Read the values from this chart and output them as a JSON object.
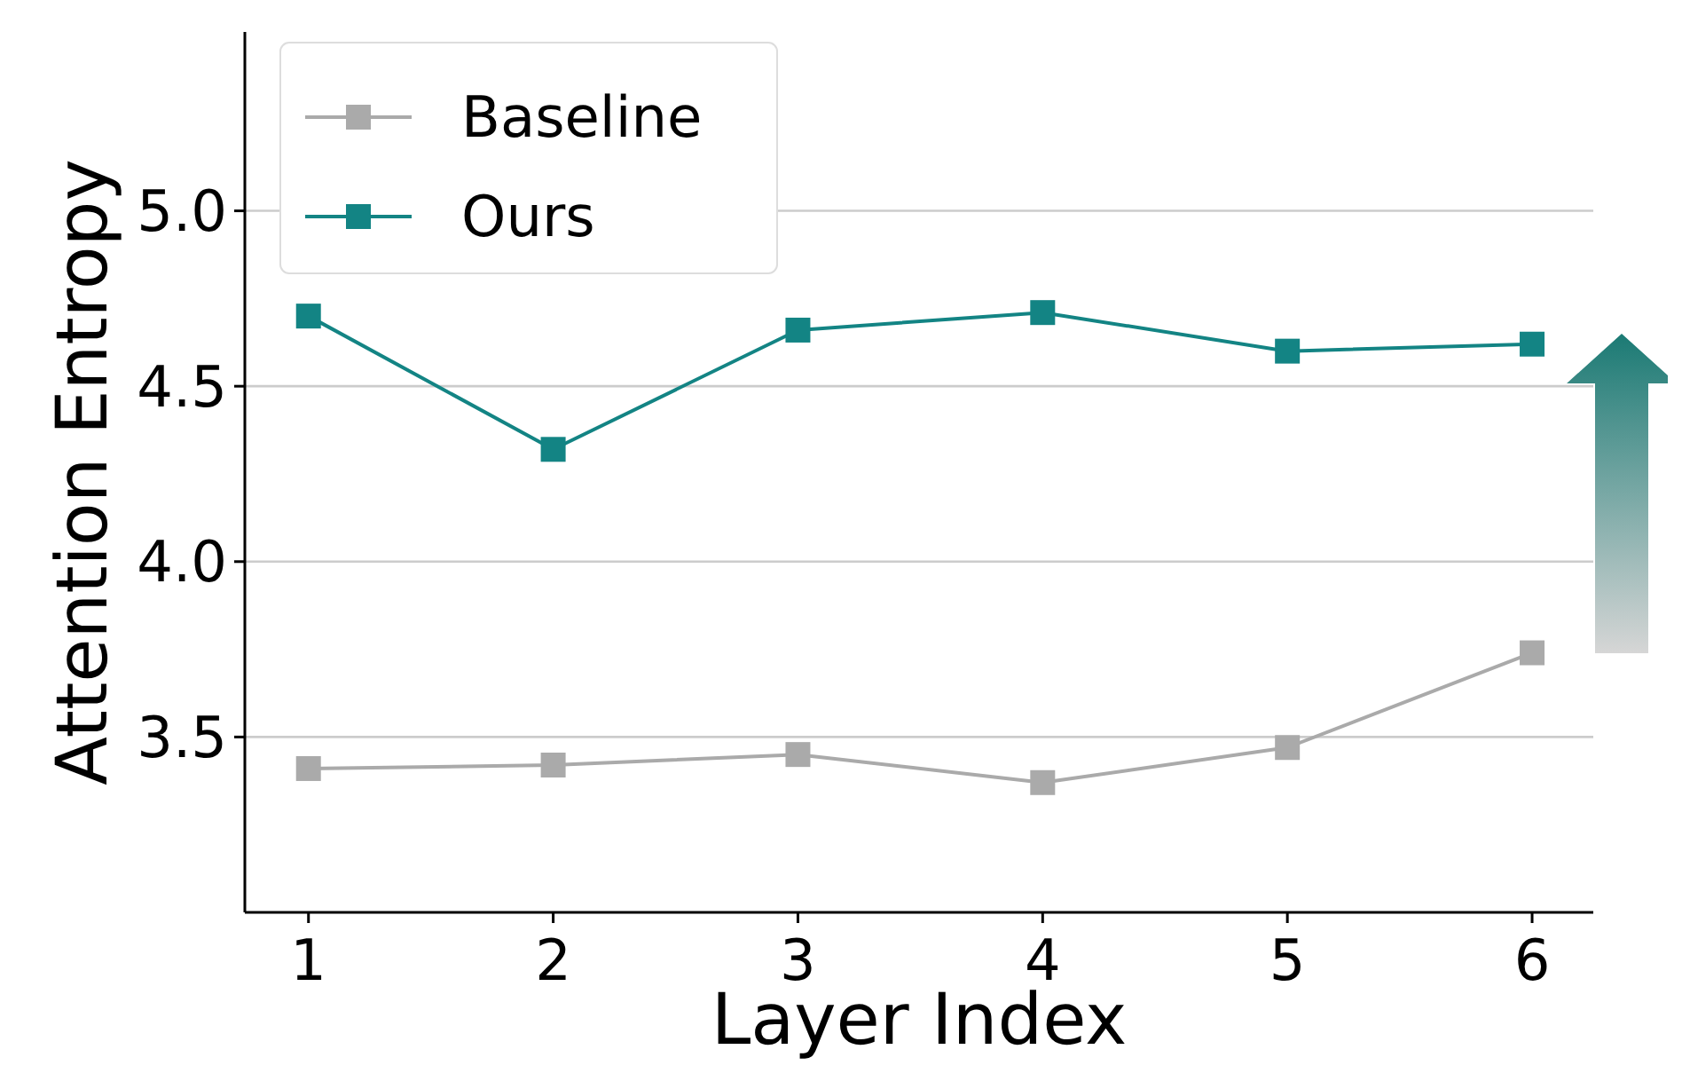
{
  "chart_data": {
    "type": "line",
    "xlabel": "Layer Index",
    "ylabel": "Attention Entropy",
    "x": [
      1,
      2,
      3,
      4,
      5,
      6
    ],
    "series": [
      {
        "name": "Baseline",
        "color": "#aaaaaa",
        "values": [
          3.41,
          3.42,
          3.45,
          3.37,
          3.47,
          3.74
        ]
      },
      {
        "name": "Ours",
        "color": "#138484",
        "values": [
          4.7,
          4.32,
          4.66,
          4.71,
          4.6,
          4.62
        ]
      }
    ],
    "xlim": [
      0.74,
      6.25
    ],
    "xticks": [
      1,
      2,
      3,
      4,
      5,
      6
    ],
    "ylim": [
      3.0,
      5.51
    ],
    "yticks": [
      3.5,
      {
        "value": 4,
        "label": "4.0"
      },
      4.5,
      {
        "value": 5,
        "label": "5.0"
      }
    ],
    "grid": "y",
    "legend": "top left",
    "marker": "square",
    "line_style": "solid"
  }
}
